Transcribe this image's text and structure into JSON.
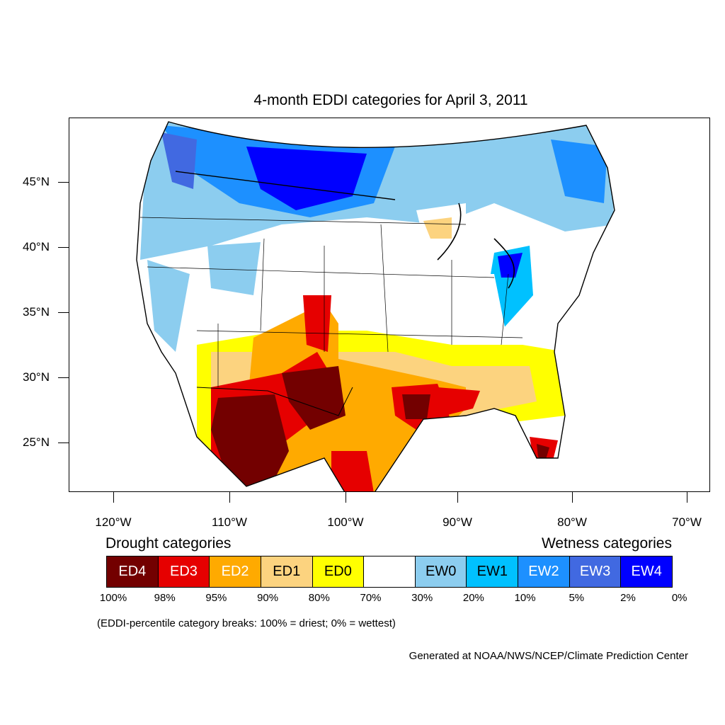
{
  "title": "4-month EDDI categories for April 3, 2011",
  "map": {
    "lat_labels": [
      "45°N",
      "40°N",
      "35°N",
      "30°N",
      "25°N"
    ],
    "lon_labels": [
      "120°W",
      "110°W",
      "100°W",
      "90°W",
      "80°W",
      "70°W"
    ],
    "regions": [
      {
        "category": "EW4",
        "area": "northern Rockies / Montana"
      },
      {
        "category": "EW3",
        "area": "Pacific Northwest coast"
      },
      {
        "category": "EW4",
        "area": "southern Michigan"
      },
      {
        "category": "EW1",
        "area": "Ohio Valley / Indiana"
      },
      {
        "category": "ED4",
        "area": "Arizona / northern Mexico"
      },
      {
        "category": "ED4",
        "area": "west Texas / New Mexico"
      },
      {
        "category": "ED4",
        "area": "Louisiana / east Texas"
      },
      {
        "category": "ED4",
        "area": "southern Florida"
      },
      {
        "category": "ED2",
        "area": "Texas / Gulf coast"
      },
      {
        "category": "ED0",
        "area": "Oklahoma / Kansas"
      }
    ]
  },
  "legend": {
    "drought_heading": "Drought categories",
    "wetness_heading": "Wetness categories",
    "cells": [
      {
        "label": "ED4",
        "color": "#730000",
        "text_color": "#ffffff"
      },
      {
        "label": "ED3",
        "color": "#e60000",
        "text_color": "#ffffff"
      },
      {
        "label": "ED2",
        "color": "#ffaa00",
        "text_color": "#ffffff"
      },
      {
        "label": "ED1",
        "color": "#fcd37f",
        "text_color": "#000000"
      },
      {
        "label": "ED0",
        "color": "#ffff00",
        "text_color": "#000000"
      },
      {
        "label": "",
        "color": "#ffffff",
        "text_color": "#000000"
      },
      {
        "label": "EW0",
        "color": "#8ccdef",
        "text_color": "#000000"
      },
      {
        "label": "EW1",
        "color": "#00c1ff",
        "text_color": "#000000"
      },
      {
        "label": "EW2",
        "color": "#1d90ff",
        "text_color": "#ffffff"
      },
      {
        "label": "EW3",
        "color": "#4169e1",
        "text_color": "#ffffff"
      },
      {
        "label": "EW4",
        "color": "#0000ff",
        "text_color": "#ffffff"
      }
    ],
    "breaks": [
      "100%",
      "98%",
      "95%",
      "90%",
      "80%",
      "70%",
      "30%",
      "20%",
      "10%",
      "5%",
      "2%",
      "0%"
    ]
  },
  "note": "(EDDI-percentile category breaks: 100% = driest; 0% = wettest)",
  "credit": "Generated at NOAA/NWS/NCEP/Climate Prediction Center"
}
